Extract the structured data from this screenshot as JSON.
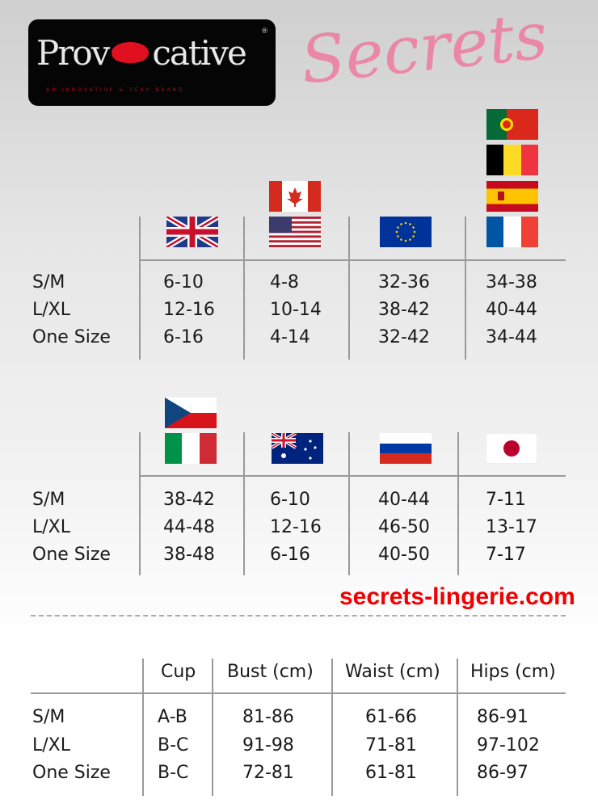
{
  "logo": {
    "brand_pre": "Prov",
    "brand_post": "cative",
    "registered": "®",
    "tagline": "AN INNOVATIVE & SEXY BRAND"
  },
  "table1": {
    "flags": [
      [
        "uk-flag"
      ],
      [
        "canada-flag",
        "usa-flag"
      ],
      [
        "eu-flag"
      ],
      [
        "portugal-flag",
        "belgium-flag",
        "spain-flag",
        "france-flag"
      ]
    ],
    "rows": [
      {
        "label": "S/M",
        "values": [
          "6-10",
          "4-8",
          "32-36",
          "34-38"
        ]
      },
      {
        "label": "L/XL",
        "values": [
          "12-16",
          "10-14",
          "38-42",
          "40-44"
        ]
      },
      {
        "label": "One Size",
        "values": [
          "6-16",
          "4-14",
          "32-42",
          "34-44"
        ]
      }
    ]
  },
  "table2": {
    "flags": [
      [
        "czech-flag",
        "italy-flag"
      ],
      [
        "australia-flag"
      ],
      [
        "russia-flag"
      ],
      [
        "japan-flag"
      ]
    ],
    "rows": [
      {
        "label": "S/M",
        "values": [
          "38-42",
          "6-10",
          "40-44",
          "7-11"
        ]
      },
      {
        "label": "L/XL",
        "values": [
          "44-48",
          "12-16",
          "46-50",
          "13-17"
        ]
      },
      {
        "label": "One Size",
        "values": [
          "38-48",
          "6-16",
          "40-50",
          "7-17"
        ]
      }
    ]
  },
  "table3": {
    "headers": [
      "Cup",
      "Bust (cm)",
      "Waist (cm)",
      "Hips (cm)"
    ],
    "rows": [
      {
        "label": "S/M",
        "values": [
          "A-B",
          "81-86",
          "61-66",
          "86-91"
        ]
      },
      {
        "label": "L/XL",
        "values": [
          "B-C",
          "91-98",
          "71-81",
          "97-102"
        ]
      },
      {
        "label": "One Size",
        "values": [
          "B-C",
          "72-81",
          "61-81",
          "86-97"
        ]
      }
    ]
  },
  "watermark": {
    "script": "Secrets",
    "url": "secrets-lingerie.com"
  },
  "colors": {
    "logo_bg": "#050505",
    "lips": "#e01020",
    "watermark_pink": "#f06e96",
    "watermark_red": "#f00000"
  }
}
